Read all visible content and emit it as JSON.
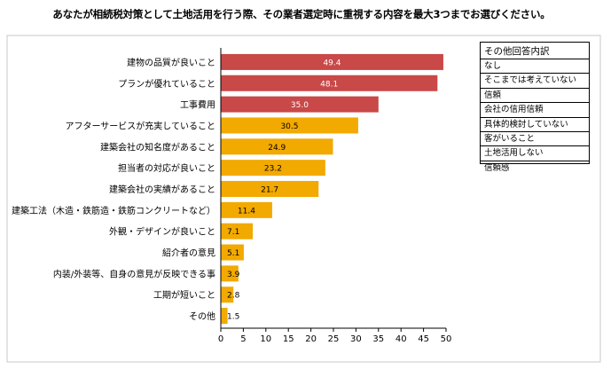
{
  "chart_data": {
    "type": "bar",
    "orientation": "horizontal",
    "title": "あなたが相続税対策として土地活用を行う際、その業者選定時に重視する内容を最大3つまでお選びください。",
    "categories": [
      "建物の品質が良いこと",
      "プランが優れていること",
      "工事費用",
      "アフターサービスが充実していること",
      "建築会社の知名度があること",
      "担当者の対応が良いこと",
      "建築会社の実績があること",
      "建築工法（木造・鉄筋造・鉄筋コンクリートなど）",
      "外観・デザインが良いこと",
      "紹介者の意見",
      "内装/外装等、自身の意見が反映できる事",
      "工期が短いこと",
      "その他"
    ],
    "values": [
      49.4,
      48.1,
      35.0,
      30.5,
      24.9,
      23.2,
      21.7,
      11.4,
      7.1,
      5.1,
      3.9,
      2.8,
      1.5
    ],
    "value_labels": [
      "49.4",
      "48.1",
      "35.0",
      "30.5",
      "24.9",
      "23.2",
      "21.7",
      "11.4",
      "7.1",
      "5.1",
      "3.9",
      "2.8",
      "1.5"
    ],
    "highlight_count": 3,
    "colors": {
      "highlight": "#c94848",
      "normal": "#f2a900"
    },
    "xlim": [
      0,
      50
    ],
    "x_ticks": [
      0,
      5,
      10,
      15,
      20,
      25,
      30,
      35,
      40,
      45,
      50
    ],
    "grid": false
  },
  "other_box": {
    "title": "その他回答内訳",
    "items": [
      "なし",
      "そこまでは考えていない",
      "信頼",
      "会社の信用信頼",
      "具体的検討していない",
      "客がいること",
      "土地活用しない",
      "信頼感"
    ]
  }
}
